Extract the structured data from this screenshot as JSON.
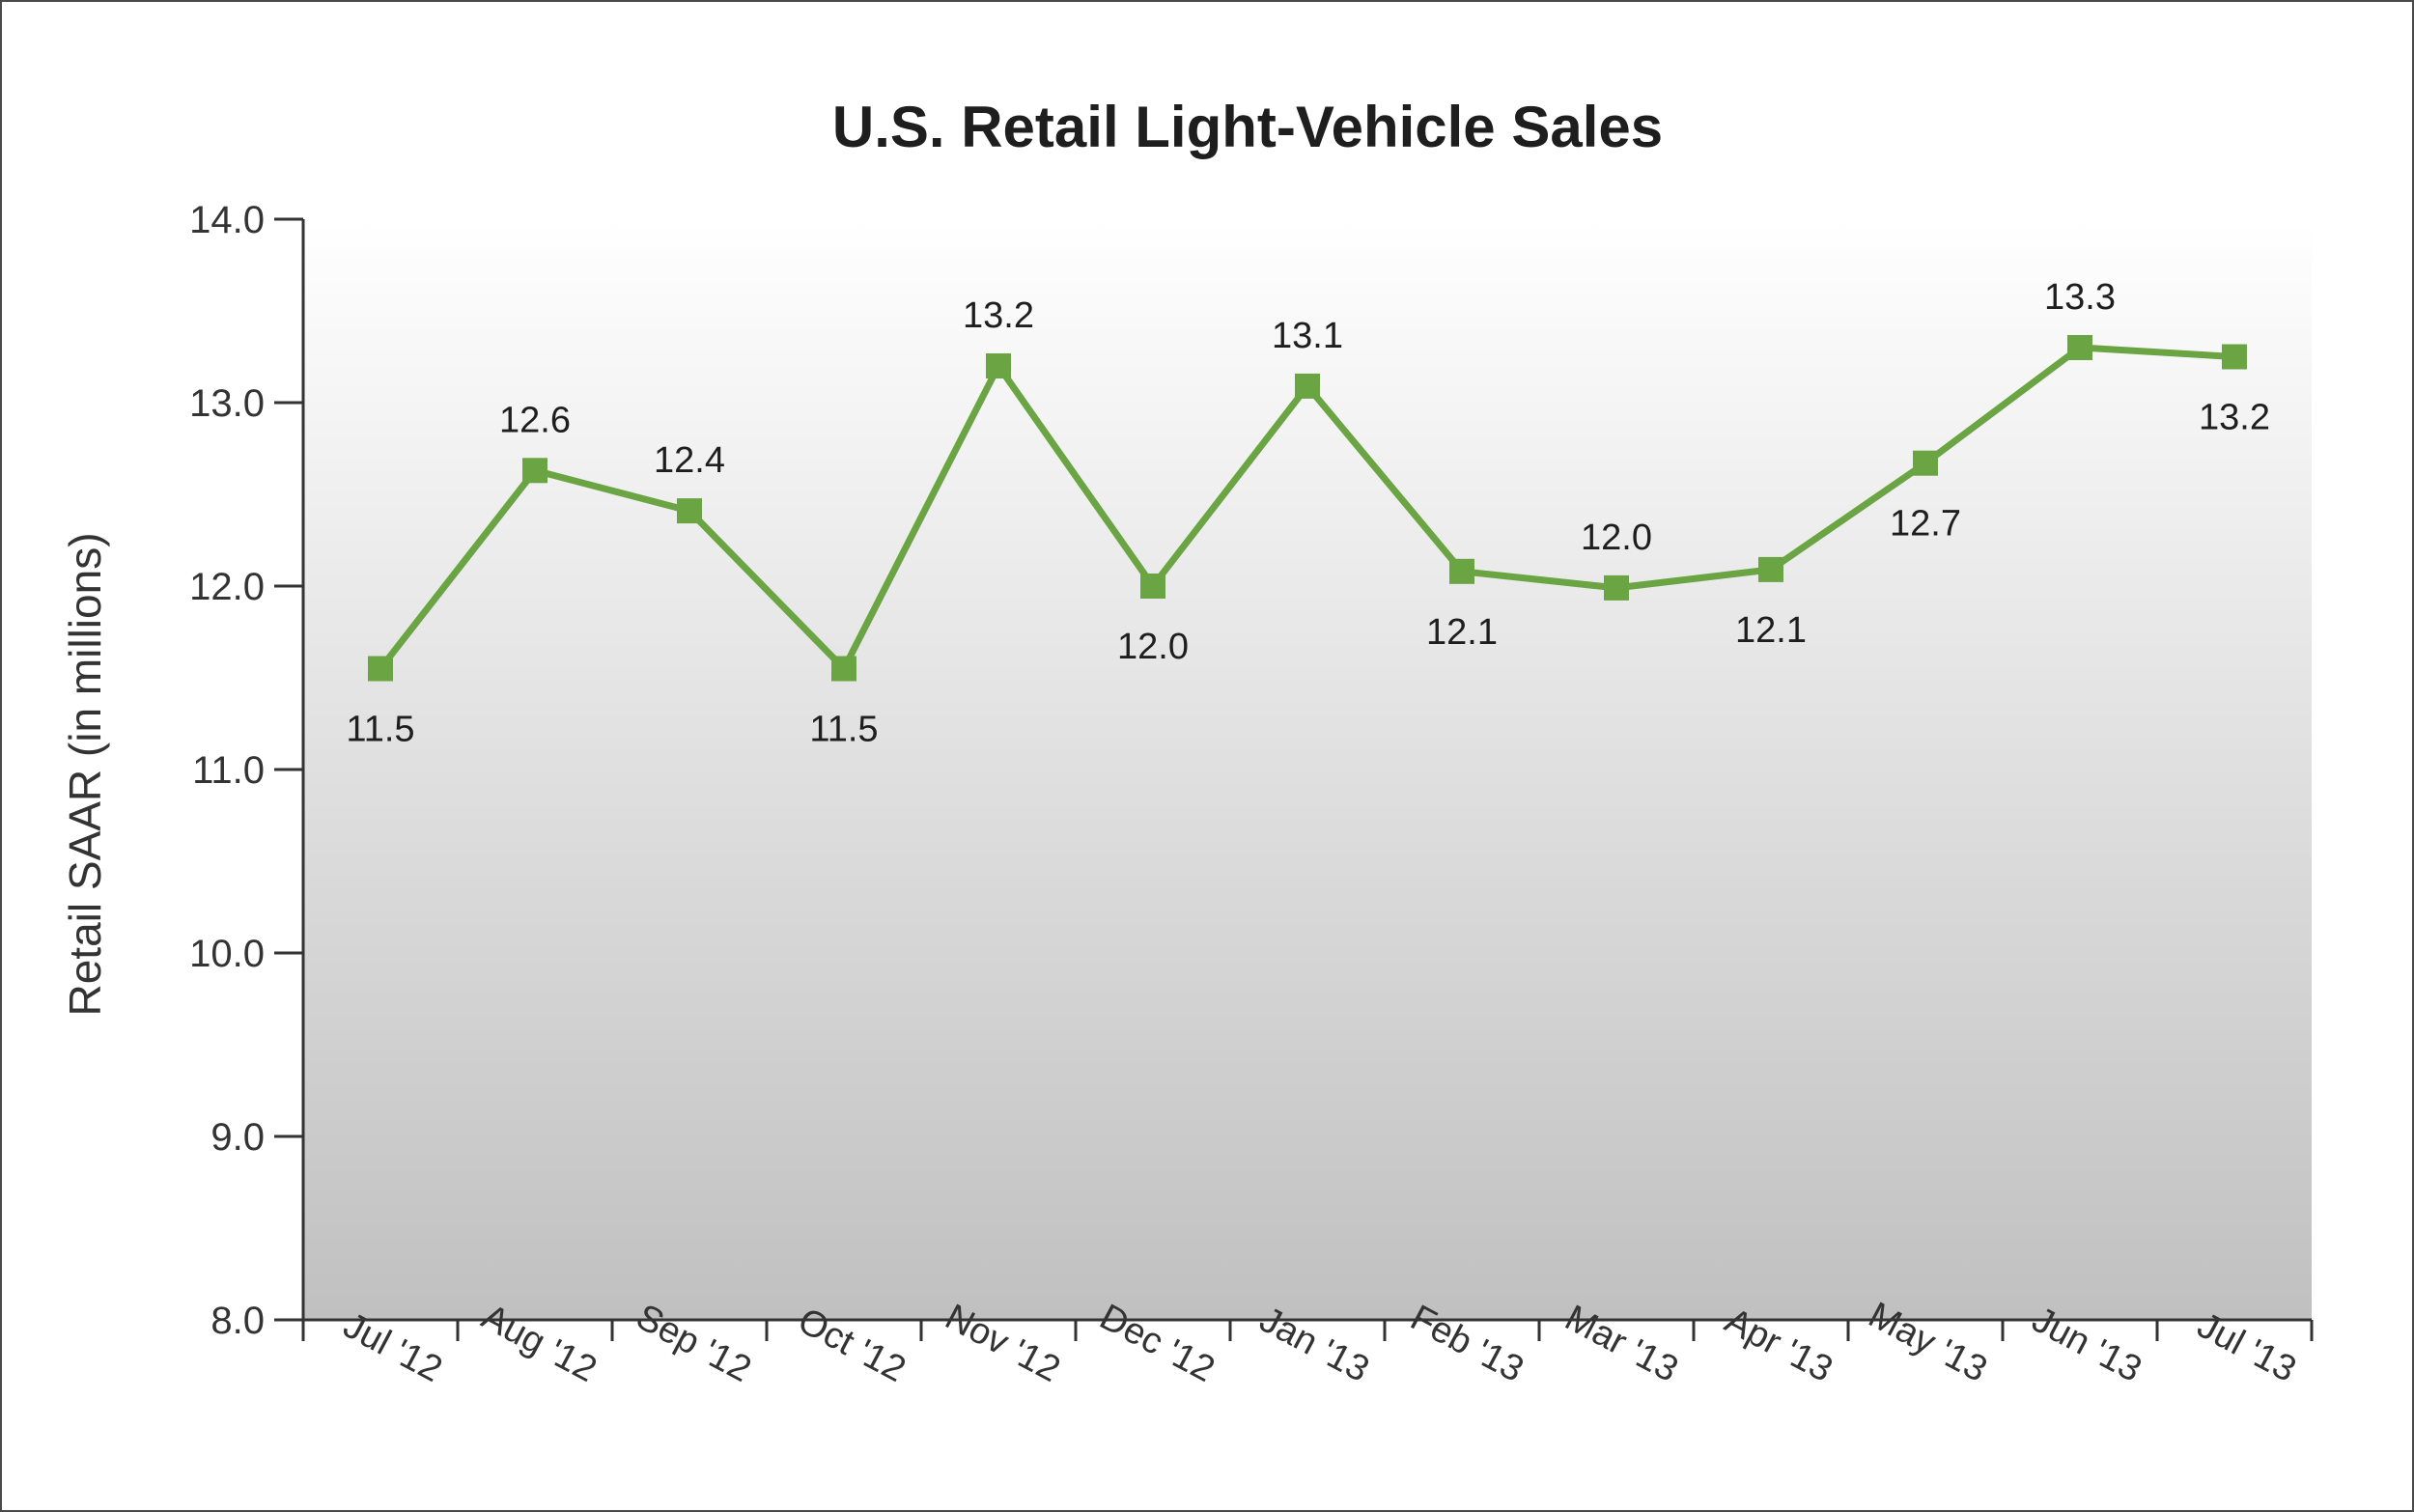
{
  "chart_data": {
    "type": "line",
    "title": "U.S. Retail Light-Vehicle Sales",
    "xlabel": "",
    "ylabel": "Retail SAAR (in millions)",
    "ylim": [
      8.0,
      14.0
    ],
    "yticks": [
      "8.0",
      "9.0",
      "10.0",
      "11.0",
      "12.0",
      "13.0",
      "14.0"
    ],
    "categories": [
      "Jul '12",
      "Aug '12",
      "Sep '12",
      "Oct '12",
      "Nov '12",
      "Dec '12",
      "Jan '13",
      "Feb '13",
      "Mar '13",
      "Apr '13",
      "May '13",
      "Jun '13",
      "Jul '13"
    ],
    "series": [
      {
        "values": [
          11.55,
          12.63,
          12.41,
          11.55,
          13.2,
          12.0,
          13.09,
          12.08,
          11.99,
          12.09,
          12.67,
          13.3,
          13.25
        ],
        "labels": [
          "11.5",
          "12.6",
          "12.4",
          "11.5",
          "13.2",
          "12.0",
          "13.1",
          "12.1",
          "12.0",
          "12.1",
          "12.7",
          "13.3",
          "13.2"
        ],
        "label_positions": [
          "below",
          "above",
          "above",
          "below",
          "above",
          "below",
          "above",
          "below",
          "above",
          "below",
          "below",
          "above",
          "below"
        ],
        "color": "#6aa443"
      }
    ],
    "grid": false,
    "legend": "none",
    "background": "gradient light-to-gray"
  }
}
